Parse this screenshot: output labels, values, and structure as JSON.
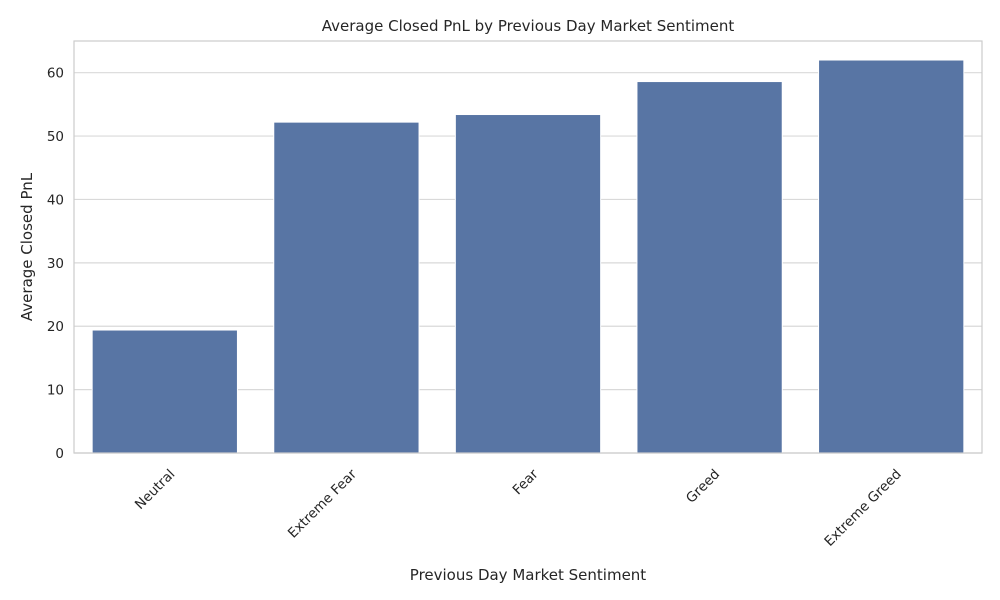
{
  "chart_data": {
    "type": "bar",
    "title": "Average Closed PnL by Previous Day Market Sentiment",
    "xlabel": "Previous Day Market Sentiment",
    "ylabel": "Average Closed PnL",
    "categories": [
      "Neutral",
      "Extreme Fear",
      "Fear",
      "Greed",
      "Extreme Greed"
    ],
    "values": [
      19.4,
      52.2,
      53.4,
      58.6,
      62.0
    ],
    "ylim": [
      0,
      65
    ],
    "yticks": [
      0,
      10,
      20,
      30,
      40,
      50,
      60
    ],
    "grid": "horizontal",
    "bar_color": "#5875a4",
    "grid_color": "#d9d9d9",
    "spine_color": "#cccccc"
  }
}
